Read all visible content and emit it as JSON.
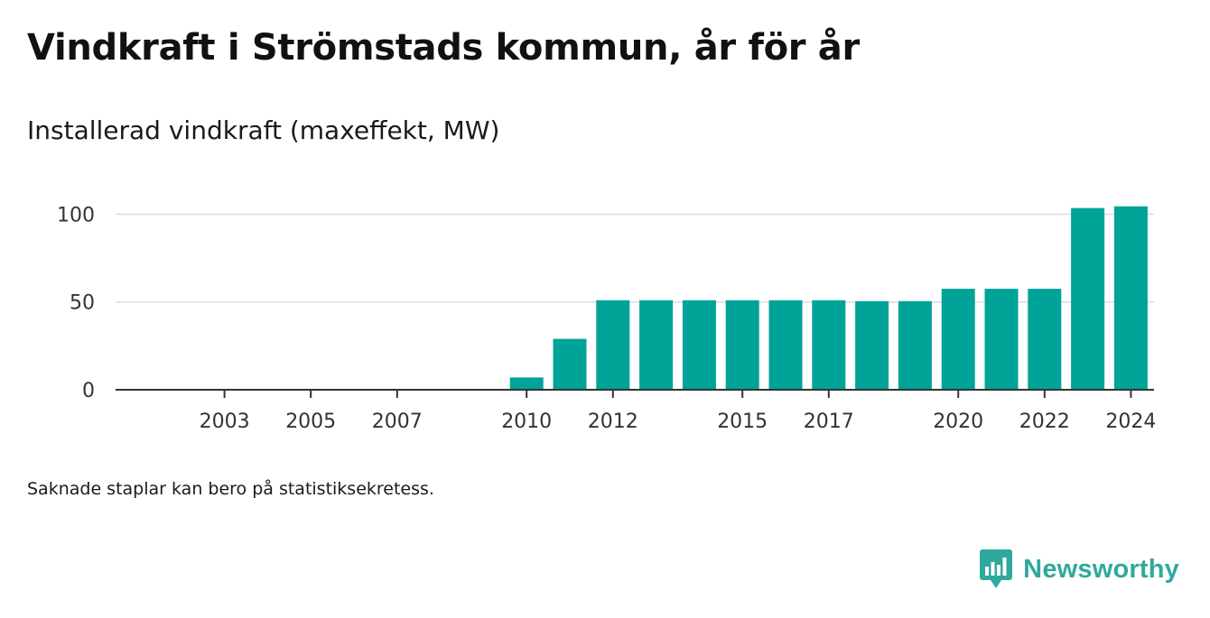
{
  "title": "Vindkraft i Strömstads kommun, år för år",
  "subtitle": "Installerad vindkraft (maxeffekt, MW)",
  "note": "Saknade staplar kan bero på statistiksekretess.",
  "brand": {
    "name": "Newsworthy",
    "icon": "bar-chart-speech-bubble-icon"
  },
  "colors": {
    "bar": "#00a398",
    "grid": "#dcdcdc",
    "axis": "#333333",
    "brand": "#2fa99c"
  },
  "chart_data": {
    "type": "bar",
    "categories": [
      "2001",
      "2002",
      "2003",
      "2004",
      "2005",
      "2006",
      "2007",
      "2008",
      "2009",
      "2010",
      "2011",
      "2012",
      "2013",
      "2014",
      "2015",
      "2016",
      "2017",
      "2018",
      "2019",
      "2020",
      "2021",
      "2022",
      "2023",
      "2024"
    ],
    "values": [
      null,
      null,
      null,
      null,
      null,
      null,
      null,
      null,
      null,
      7,
      29,
      51,
      51,
      51,
      51,
      51,
      51,
      50.5,
      50.5,
      57.5,
      57.5,
      57.5,
      103.5,
      104.5
    ],
    "xticks": [
      "2003",
      "2005",
      "2007",
      "2010",
      "2012",
      "2015",
      "2017",
      "2020",
      "2022",
      "2024"
    ],
    "yticks": [
      0,
      50,
      100
    ],
    "ylim": [
      0,
      110
    ],
    "xlabel": "",
    "ylabel": "",
    "grid": true
  }
}
